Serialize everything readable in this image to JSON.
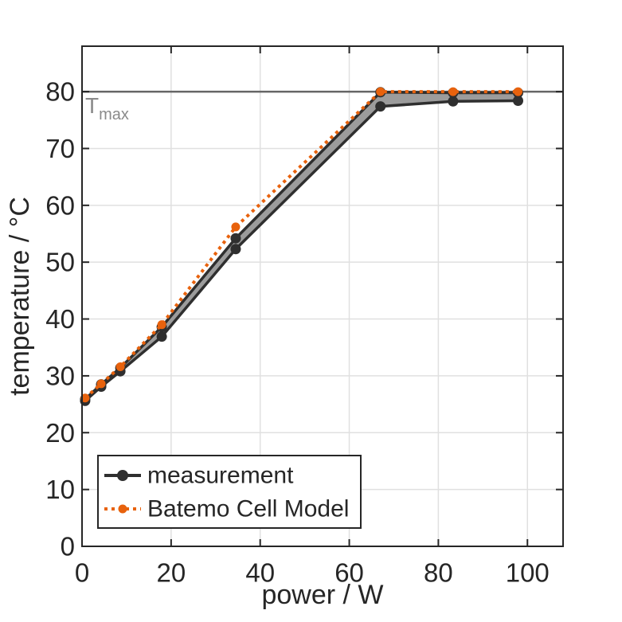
{
  "figure": {
    "tmax_label": {
      "base": "T",
      "sub": "max"
    },
    "legend": {
      "items": [
        {
          "label": "measurement"
        },
        {
          "label": "Batemo Cell Model"
        }
      ]
    }
  },
  "chart_data": {
    "type": "line",
    "title": "",
    "xlabel": "power / W",
    "ylabel": "temperature / °C",
    "xlim": [
      0,
      108
    ],
    "ylim": [
      0,
      88
    ],
    "xticks": [
      0,
      20,
      40,
      60,
      80,
      100
    ],
    "yticks": [
      0,
      10,
      20,
      30,
      40,
      50,
      60,
      70,
      80
    ],
    "grid": true,
    "legend_position": "lower left",
    "x": [
      0.7,
      4.3,
      8.6,
      17.9,
      34.5,
      67.0,
      83.3,
      97.9
    ],
    "series": [
      {
        "name": "measurement (band lower)",
        "values": [
          25.6,
          28.1,
          30.8,
          36.9,
          52.3,
          77.4,
          78.3,
          78.4
        ],
        "color": "#2f2f2f",
        "line_style": "solid",
        "marker": "circle"
      },
      {
        "name": "measurement (band upper)",
        "values": [
          25.9,
          28.5,
          31.4,
          38.6,
          54.2,
          79.9,
          79.8,
          79.8
        ],
        "color": "#2f2f2f",
        "line_style": "solid",
        "marker": "circle"
      },
      {
        "name": "Batemo Cell Model",
        "values": [
          26.1,
          28.6,
          31.6,
          39.0,
          56.2,
          80.0,
          80.0,
          80.0
        ],
        "color": "#e8620d",
        "line_style": "dotted",
        "marker": "circle"
      }
    ],
    "band_fill_between": [
      "measurement (band lower)",
      "measurement (band upper)"
    ],
    "annotations": [
      {
        "type": "hline",
        "y": 80,
        "label": "Tmax",
        "color": "#666666"
      }
    ],
    "colors": {
      "measurement": "#2f2f2f",
      "band_fill": "#9c9c9c",
      "model_orange": "#e8620d",
      "grid": "#e0e0e0",
      "axis": "#262626",
      "tmax_line": "#666666",
      "tmax_text": "#8a8a8a"
    }
  }
}
